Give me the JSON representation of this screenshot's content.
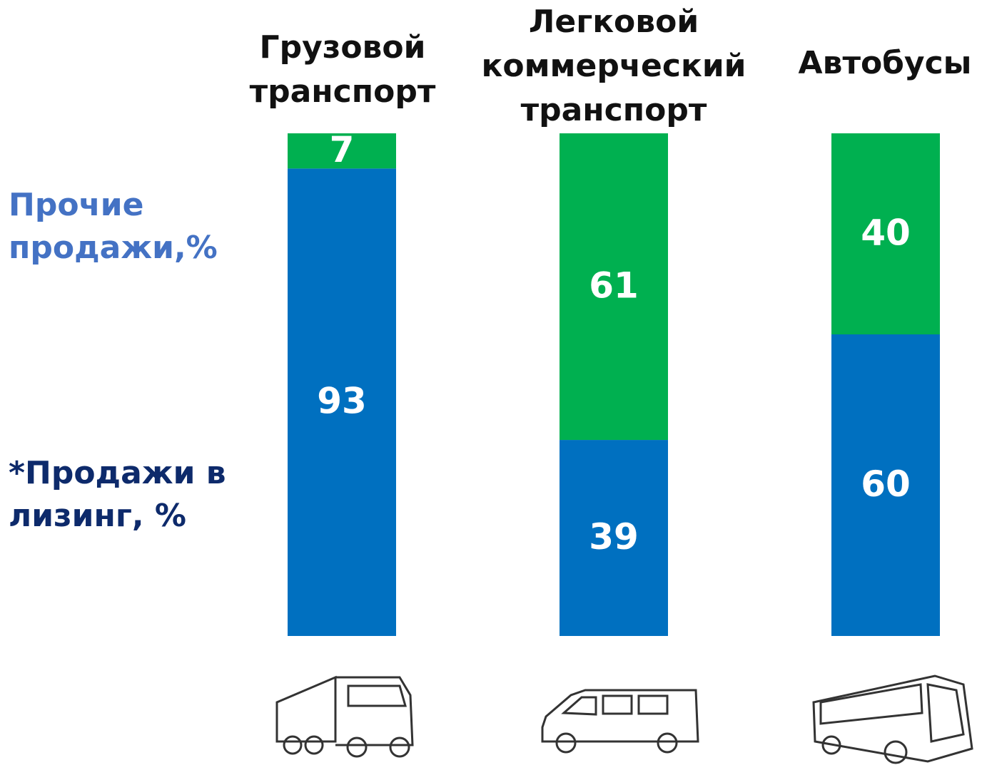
{
  "chart_data": {
    "type": "stacked_bar",
    "categories": [
      "Грузовой транспорт",
      "Легковой коммерческий транспорт",
      "Автобусы"
    ],
    "series": [
      {
        "name": "*Продажи в лизинг, %",
        "color": "#0070c0",
        "values": [
          93,
          39,
          60
        ]
      },
      {
        "name": "Прочие продажи,%",
        "color": "#00b050",
        "values": [
          7,
          61,
          40
        ]
      }
    ],
    "ylim": [
      0,
      100
    ]
  }
}
